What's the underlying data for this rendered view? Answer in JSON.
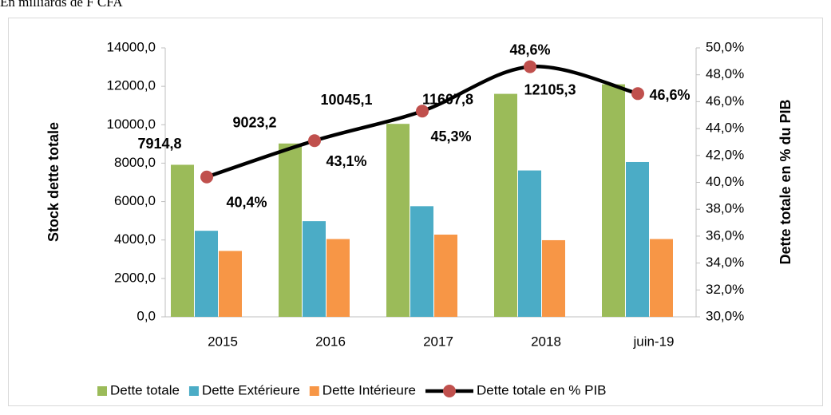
{
  "chart_data": {
    "type": "bar",
    "subtitle": "En milliards de F CFA",
    "categories": [
      "2015",
      "2016",
      "2017",
      "2018",
      "juin-19"
    ],
    "series": [
      {
        "name": "Dette totale",
        "color": "#9bbb59",
        "values": [
          7914.8,
          9023.2,
          10045.1,
          11607.8,
          12105.3
        ],
        "value_labels": [
          "7914,8",
          "9023,2",
          "10045,1",
          "11607,8",
          "12105,3"
        ]
      },
      {
        "name": "Dette Extérieure",
        "color": "#4bacc6",
        "values": [
          4480,
          4980,
          5760,
          7620,
          8060
        ]
      },
      {
        "name": "Dette Intérieure",
        "color": "#f79646",
        "values": [
          3430,
          4050,
          4280,
          3990,
          4050
        ]
      },
      {
        "name": "Dette totale en % PIB",
        "color": "#000000",
        "marker_color": "#c0504d",
        "type": "line",
        "axis": "y2",
        "values": [
          40.4,
          43.1,
          45.3,
          48.6,
          46.6
        ],
        "value_labels": [
          "40,4%",
          "43,1%",
          "45,3%",
          "48,6%",
          "46,6%"
        ]
      }
    ],
    "ylabel": "Stock  dette  totale",
    "y2label": "Dette totale en % du PIB",
    "ylim": [
      0,
      14000
    ],
    "yticks": [
      {
        "value": 0,
        "label": "0,0"
      },
      {
        "value": 2000,
        "label": "2000,0"
      },
      {
        "value": 4000,
        "label": "4000,0"
      },
      {
        "value": 6000,
        "label": "6000,0"
      },
      {
        "value": 8000,
        "label": "8000,0"
      },
      {
        "value": 10000,
        "label": "10000,0"
      },
      {
        "value": 12000,
        "label": "12000,0"
      },
      {
        "value": 14000,
        "label": "14000,0"
      }
    ],
    "y2lim": [
      30,
      50
    ],
    "y2ticks": [
      {
        "value": 30,
        "label": "30,0%"
      },
      {
        "value": 32,
        "label": "32,0%"
      },
      {
        "value": 34,
        "label": "34,0%"
      },
      {
        "value": 36,
        "label": "36,0%"
      },
      {
        "value": 38,
        "label": "38,0%"
      },
      {
        "value": 40,
        "label": "40,0%"
      },
      {
        "value": 42,
        "label": "42,0%"
      },
      {
        "value": 44,
        "label": "44,0%"
      },
      {
        "value": 46,
        "label": "46,0%"
      },
      {
        "value": 48,
        "label": "48,0%"
      },
      {
        "value": 50,
        "label": "50,0%"
      }
    ],
    "legend": "bottom",
    "grid": false
  }
}
